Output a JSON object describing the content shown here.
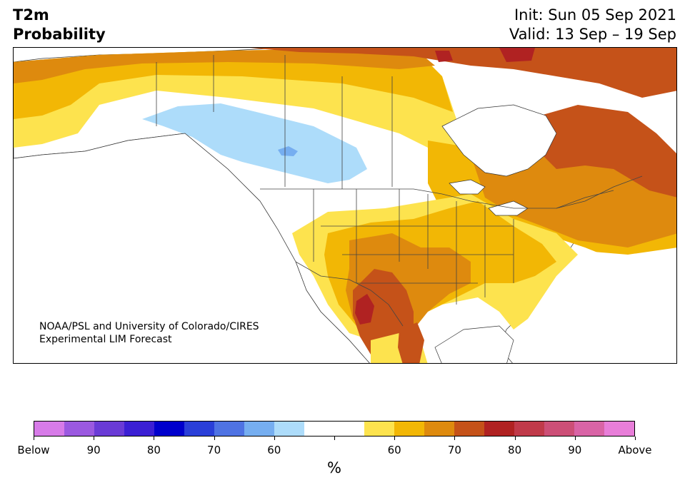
{
  "header": {
    "title_line1": "T2m",
    "title_line2": "Probability",
    "init": "Init: Sun 05 Sep 2021",
    "valid": "Valid: 13 Sep – 19 Sep"
  },
  "credit": {
    "line1": "NOAA/PSL and University of Colorado/CIRES",
    "line2": "Experimental LIM Forecast"
  },
  "colorbar": {
    "unit": "%",
    "colors": [
      "#d77be8",
      "#9b59e0",
      "#6a3bd6",
      "#3b1fd4",
      "#0000cc",
      "#2a3fd8",
      "#4f73e3",
      "#76aef0",
      "#addcfa",
      "#ffffff",
      "#ffffff",
      "#fde34e",
      "#f2b705",
      "#de8a0e",
      "#c55219",
      "#b02222",
      "#c03a4a",
      "#cc4f77",
      "#d964a6",
      "#e87ed9"
    ],
    "tick_labels": [
      "Below",
      "90",
      "80",
      "70",
      "60",
      "",
      "60",
      "70",
      "80",
      "90",
      "Above"
    ]
  },
  "map": {
    "colors": {
      "cold_light": "#addcfa",
      "cold_mid": "#76aef0",
      "warm_60": "#fde34e",
      "warm_65": "#f2b705",
      "warm_70": "#de8a0e",
      "warm_75": "#c55219",
      "warm_80": "#b02222",
      "land_outline": "#333333",
      "border": "#444444"
    }
  }
}
